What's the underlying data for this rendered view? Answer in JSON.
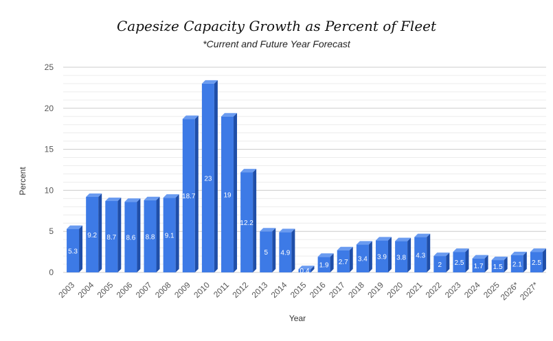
{
  "chart_data": {
    "type": "bar",
    "title": "Capesize Capacity Growth as Percent of Fleet",
    "subtitle": "*Current and Future Year Forecast",
    "xlabel": "Year",
    "ylabel": "Percent",
    "ylim": [
      0,
      25
    ],
    "yticks": [
      0,
      5,
      10,
      15,
      20,
      25
    ],
    "grid": true,
    "bar_color": "#3d7ae6",
    "bar_side_color": "#1f4ea8",
    "bar_top_color": "#6a9bf0",
    "categories": [
      "2003",
      "2004",
      "2005",
      "2006",
      "2007",
      "2008",
      "2009",
      "2010",
      "2011",
      "2012",
      "2013",
      "2014",
      "2015",
      "2016",
      "2017",
      "2018",
      "2019",
      "2020",
      "2021",
      "2022",
      "2023",
      "2024",
      "2025",
      "2026*",
      "2027*"
    ],
    "values": [
      5.3,
      9.2,
      8.7,
      8.6,
      8.8,
      9.1,
      18.7,
      23,
      19,
      12.2,
      5,
      4.9,
      0.4,
      1.9,
      2.7,
      3.4,
      3.9,
      3.8,
      4.3,
      2,
      2.5,
      1.7,
      1.5,
      2.1,
      2.5
    ]
  }
}
